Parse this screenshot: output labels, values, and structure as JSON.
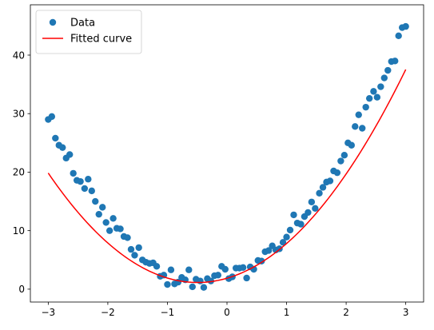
{
  "chart_data": {
    "type": "scatter",
    "xlim": [
      -3.3,
      3.3
    ],
    "ylim": [
      -2.2,
      48.6
    ],
    "x_ticks": [
      -3,
      -2,
      -1,
      0,
      1,
      2,
      3
    ],
    "y_ticks": [
      0,
      10,
      20,
      30,
      40
    ],
    "grid": false,
    "legend_position": "top-left",
    "colors": {
      "data": "#1f77b4",
      "fit": "#ff0000",
      "axes": "#000000"
    },
    "series": [
      {
        "name": "Data",
        "kind": "scatter",
        "x": [
          -3.0,
          -2.94,
          -2.88,
          -2.82,
          -2.76,
          -2.7,
          -2.64,
          -2.58,
          -2.52,
          -2.46,
          -2.39,
          -2.33,
          -2.27,
          -2.21,
          -2.15,
          -2.09,
          -2.03,
          -1.97,
          -1.91,
          -1.85,
          -1.79,
          -1.73,
          -1.67,
          -1.61,
          -1.55,
          -1.48,
          -1.42,
          -1.36,
          -1.3,
          -1.24,
          -1.18,
          -1.12,
          -1.06,
          -1.0,
          -0.94,
          -0.88,
          -0.82,
          -0.76,
          -0.7,
          -0.64,
          -0.58,
          -0.52,
          -0.45,
          -0.39,
          -0.33,
          -0.27,
          -0.21,
          -0.15,
          -0.09,
          -0.03,
          0.03,
          0.09,
          0.15,
          0.21,
          0.27,
          0.33,
          0.39,
          0.45,
          0.52,
          0.58,
          0.64,
          0.7,
          0.76,
          0.82,
          0.88,
          0.94,
          1.0,
          1.06,
          1.12,
          1.18,
          1.24,
          1.3,
          1.36,
          1.42,
          1.48,
          1.55,
          1.61,
          1.67,
          1.73,
          1.79,
          1.85,
          1.91,
          1.97,
          2.03,
          2.09,
          2.15,
          2.21,
          2.27,
          2.33,
          2.39,
          2.46,
          2.52,
          2.58,
          2.64,
          2.7,
          2.76,
          2.82,
          2.88,
          2.94,
          3.0
        ],
        "y": [
          29.0,
          29.5,
          25.8,
          24.6,
          24.2,
          22.4,
          23.0,
          19.8,
          18.6,
          18.4,
          17.2,
          18.8,
          16.8,
          15.0,
          12.8,
          14.0,
          11.4,
          10.0,
          12.1,
          10.4,
          10.3,
          9.0,
          8.8,
          6.8,
          5.8,
          7.1,
          5.0,
          4.6,
          4.4,
          4.5,
          3.9,
          2.2,
          2.4,
          0.8,
          3.3,
          0.9,
          1.2,
          2.0,
          1.6,
          3.3,
          0.4,
          1.7,
          1.4,
          0.3,
          1.8,
          1.4,
          2.3,
          2.4,
          3.9,
          3.4,
          1.8,
          2.1,
          3.6,
          3.6,
          3.7,
          1.9,
          3.8,
          3.4,
          4.9,
          4.8,
          6.4,
          6.6,
          7.4,
          6.7,
          6.9,
          8.0,
          8.9,
          10.1,
          12.7,
          11.3,
          11.1,
          12.4,
          13.1,
          14.9,
          13.8,
          16.4,
          17.4,
          18.3,
          18.5,
          20.2,
          19.9,
          21.9,
          22.9,
          25.0,
          24.6,
          27.8,
          29.8,
          27.5,
          31.1,
          32.6,
          33.8,
          32.8,
          34.6,
          36.1,
          37.4,
          38.9,
          39.0,
          43.3,
          44.7,
          44.9
        ]
      },
      {
        "name": "Fitted curve",
        "kind": "line",
        "coefficients": [
          2.98,
          2.95,
          1.87
        ]
      }
    ]
  }
}
